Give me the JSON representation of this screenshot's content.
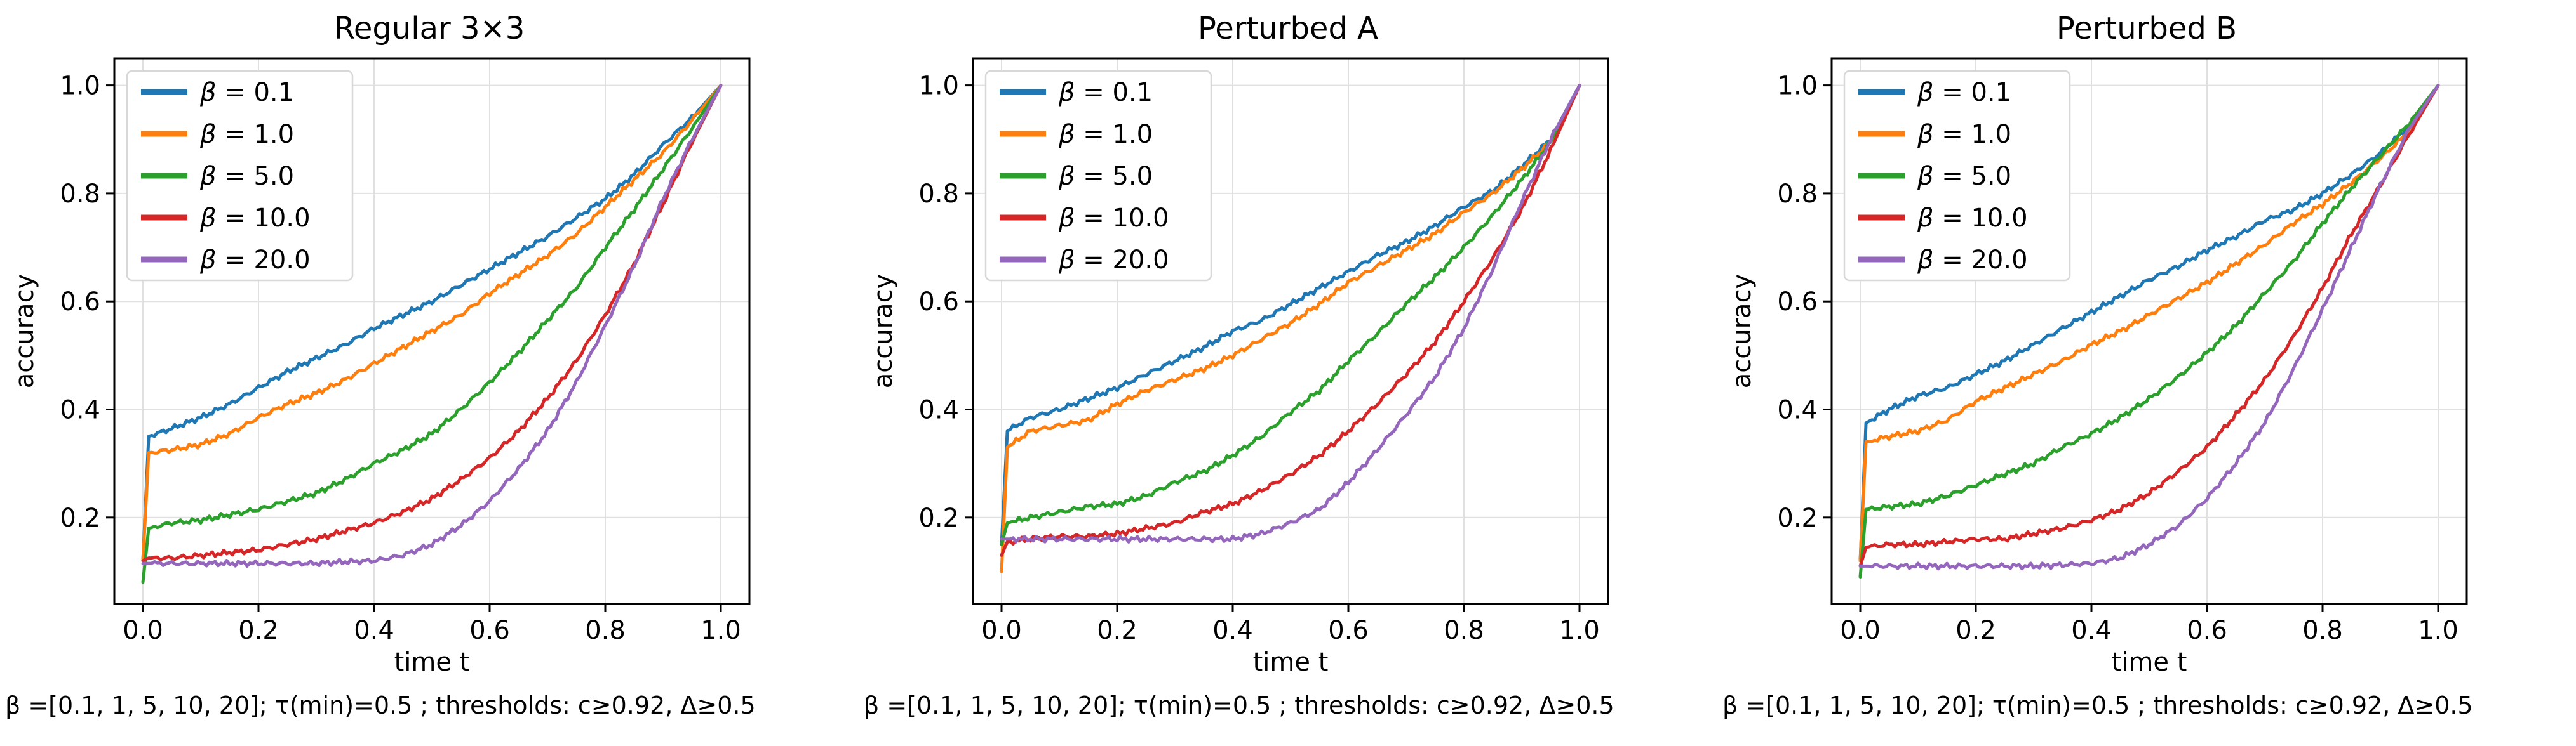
{
  "figure": {
    "background": "#ffffff",
    "grid_color": "#e0e0e0",
    "spine_color": "#000000",
    "tick_color": "#000000",
    "legend_border_color": "#d8d8d8"
  },
  "chart_data": [
    {
      "type": "line",
      "title": "Regular 3×3",
      "xlabel": "time t",
      "ylabel": "accuracy",
      "caption": "β =[0.1, 1, 5, 10, 20]; τ(min)=0.5 ; thresholds: c≥0.92, Δ≥0.5",
      "xlim": [
        0.0,
        1.0
      ],
      "ylim": [
        0.04,
        1.05
      ],
      "xticks": [
        0.0,
        0.2,
        0.4,
        0.6,
        0.8,
        1.0
      ],
      "yticks": [
        0.2,
        0.4,
        0.6,
        0.8,
        1.0
      ],
      "grid": true,
      "legend_position": "upper left",
      "x": [
        0,
        0.01,
        0.05,
        0.1,
        0.15,
        0.2,
        0.25,
        0.3,
        0.35,
        0.4,
        0.45,
        0.5,
        0.55,
        0.6,
        0.65,
        0.7,
        0.75,
        0.8,
        0.85,
        0.9,
        0.95,
        1.0
      ],
      "series": [
        {
          "name": "β = 0.1",
          "color": "#1f77b4",
          "values": [
            0.12,
            0.35,
            0.365,
            0.385,
            0.41,
            0.44,
            0.47,
            0.495,
            0.52,
            0.55,
            0.575,
            0.6,
            0.63,
            0.66,
            0.69,
            0.72,
            0.755,
            0.79,
            0.835,
            0.89,
            0.94,
            1.0
          ]
        },
        {
          "name": "β = 1.0",
          "color": "#ff7f0e",
          "values": [
            0.12,
            0.32,
            0.325,
            0.335,
            0.355,
            0.385,
            0.41,
            0.43,
            0.455,
            0.485,
            0.515,
            0.545,
            0.575,
            0.615,
            0.65,
            0.685,
            0.725,
            0.775,
            0.825,
            0.875,
            0.935,
            1.0
          ]
        },
        {
          "name": "β = 5.0",
          "color": "#2ca02c",
          "values": [
            0.08,
            0.18,
            0.19,
            0.195,
            0.205,
            0.215,
            0.23,
            0.245,
            0.27,
            0.3,
            0.325,
            0.355,
            0.4,
            0.45,
            0.505,
            0.565,
            0.625,
            0.7,
            0.77,
            0.845,
            0.92,
            1.0
          ]
        },
        {
          "name": "β = 10.0",
          "color": "#d62728",
          "values": [
            0.12,
            0.125,
            0.125,
            0.13,
            0.135,
            0.14,
            0.15,
            0.16,
            0.175,
            0.19,
            0.21,
            0.235,
            0.27,
            0.31,
            0.36,
            0.42,
            0.49,
            0.575,
            0.67,
            0.78,
            0.895,
            1.0
          ]
        },
        {
          "name": "β = 20.0",
          "color": "#9467bd",
          "values": [
            0.115,
            0.115,
            0.115,
            0.115,
            0.115,
            0.115,
            0.115,
            0.115,
            0.118,
            0.12,
            0.13,
            0.15,
            0.185,
            0.23,
            0.29,
            0.36,
            0.45,
            0.555,
            0.665,
            0.79,
            0.9,
            1.0
          ]
        }
      ]
    },
    {
      "type": "line",
      "title": "Perturbed A",
      "xlabel": "time t",
      "ylabel": "accuracy",
      "caption": "β =[0.1, 1, 5, 10, 20]; τ(min)=0.5 ; thresholds: c≥0.92, Δ≥0.5",
      "xlim": [
        0.0,
        1.0
      ],
      "ylim": [
        0.04,
        1.05
      ],
      "xticks": [
        0.0,
        0.2,
        0.4,
        0.6,
        0.8,
        1.0
      ],
      "yticks": [
        0.2,
        0.4,
        0.6,
        0.8,
        1.0
      ],
      "grid": true,
      "legend_position": "upper left",
      "x": [
        0,
        0.01,
        0.05,
        0.1,
        0.15,
        0.2,
        0.25,
        0.3,
        0.35,
        0.4,
        0.45,
        0.5,
        0.55,
        0.6,
        0.65,
        0.7,
        0.75,
        0.8,
        0.85,
        0.9,
        0.95,
        1.0
      ],
      "series": [
        {
          "name": "β = 0.1",
          "color": "#1f77b4",
          "values": [
            0.15,
            0.36,
            0.385,
            0.4,
            0.42,
            0.44,
            0.465,
            0.49,
            0.515,
            0.545,
            0.565,
            0.595,
            0.625,
            0.655,
            0.685,
            0.71,
            0.74,
            0.775,
            0.805,
            0.85,
            0.9,
            1.0
          ]
        },
        {
          "name": "β = 1.0",
          "color": "#ff7f0e",
          "values": [
            0.1,
            0.33,
            0.36,
            0.37,
            0.38,
            0.41,
            0.435,
            0.455,
            0.475,
            0.5,
            0.53,
            0.56,
            0.595,
            0.635,
            0.665,
            0.695,
            0.725,
            0.765,
            0.8,
            0.845,
            0.895,
            1.0
          ]
        },
        {
          "name": "β = 5.0",
          "color": "#2ca02c",
          "values": [
            0.15,
            0.19,
            0.2,
            0.21,
            0.22,
            0.225,
            0.24,
            0.265,
            0.285,
            0.315,
            0.35,
            0.395,
            0.435,
            0.49,
            0.54,
            0.595,
            0.645,
            0.7,
            0.76,
            0.825,
            0.895,
            1.0
          ]
        },
        {
          "name": "β = 10.0",
          "color": "#d62728",
          "values": [
            0.13,
            0.155,
            0.16,
            0.165,
            0.165,
            0.17,
            0.18,
            0.19,
            0.21,
            0.225,
            0.25,
            0.28,
            0.315,
            0.36,
            0.41,
            0.465,
            0.525,
            0.6,
            0.68,
            0.77,
            0.88,
            1.0
          ]
        },
        {
          "name": "β = 20.0",
          "color": "#9467bd",
          "values": [
            0.16,
            0.16,
            0.16,
            0.16,
            0.16,
            0.16,
            0.16,
            0.16,
            0.16,
            0.16,
            0.17,
            0.19,
            0.215,
            0.265,
            0.325,
            0.39,
            0.46,
            0.55,
            0.66,
            0.785,
            0.9,
            1.0
          ]
        }
      ]
    },
    {
      "type": "line",
      "title": "Perturbed B",
      "xlabel": "time t",
      "ylabel": "accuracy",
      "caption": "β =[0.1, 1, 5, 10, 20]; τ(min)=0.5 ; thresholds: c≥0.92, Δ≥0.5",
      "xlim": [
        0.0,
        1.0
      ],
      "ylim": [
        0.04,
        1.05
      ],
      "xticks": [
        0.0,
        0.2,
        0.4,
        0.6,
        0.8,
        1.0
      ],
      "yticks": [
        0.2,
        0.4,
        0.6,
        0.8,
        1.0
      ],
      "grid": true,
      "legend_position": "upper left",
      "x": [
        0,
        0.01,
        0.05,
        0.1,
        0.15,
        0.2,
        0.25,
        0.3,
        0.35,
        0.4,
        0.45,
        0.5,
        0.55,
        0.6,
        0.65,
        0.7,
        0.75,
        0.8,
        0.85,
        0.9,
        0.95,
        1.0
      ],
      "series": [
        {
          "name": "β = 0.1",
          "color": "#1f77b4",
          "values": [
            0.12,
            0.375,
            0.4,
            0.425,
            0.44,
            0.465,
            0.49,
            0.52,
            0.55,
            0.58,
            0.61,
            0.64,
            0.665,
            0.695,
            0.72,
            0.75,
            0.77,
            0.8,
            0.835,
            0.875,
            0.925,
            1.0
          ]
        },
        {
          "name": "β = 1.0",
          "color": "#ff7f0e",
          "values": [
            0.12,
            0.34,
            0.35,
            0.36,
            0.38,
            0.415,
            0.44,
            0.465,
            0.49,
            0.52,
            0.545,
            0.575,
            0.605,
            0.635,
            0.67,
            0.705,
            0.745,
            0.78,
            0.82,
            0.865,
            0.915,
            1.0
          ]
        },
        {
          "name": "β = 5.0",
          "color": "#2ca02c",
          "values": [
            0.09,
            0.215,
            0.22,
            0.225,
            0.24,
            0.26,
            0.28,
            0.3,
            0.33,
            0.355,
            0.385,
            0.42,
            0.46,
            0.505,
            0.555,
            0.615,
            0.675,
            0.745,
            0.81,
            0.87,
            0.93,
            1.0
          ]
        },
        {
          "name": "β = 10.0",
          "color": "#d62728",
          "values": [
            0.11,
            0.145,
            0.15,
            0.15,
            0.155,
            0.16,
            0.16,
            0.17,
            0.18,
            0.195,
            0.215,
            0.245,
            0.285,
            0.33,
            0.39,
            0.455,
            0.535,
            0.625,
            0.725,
            0.815,
            0.91,
            1.0
          ]
        },
        {
          "name": "β = 20.0",
          "color": "#9467bd",
          "values": [
            0.11,
            0.11,
            0.11,
            0.11,
            0.11,
            0.11,
            0.11,
            0.11,
            0.112,
            0.115,
            0.125,
            0.15,
            0.185,
            0.235,
            0.3,
            0.375,
            0.475,
            0.585,
            0.7,
            0.815,
            0.92,
            1.0
          ]
        }
      ]
    }
  ]
}
